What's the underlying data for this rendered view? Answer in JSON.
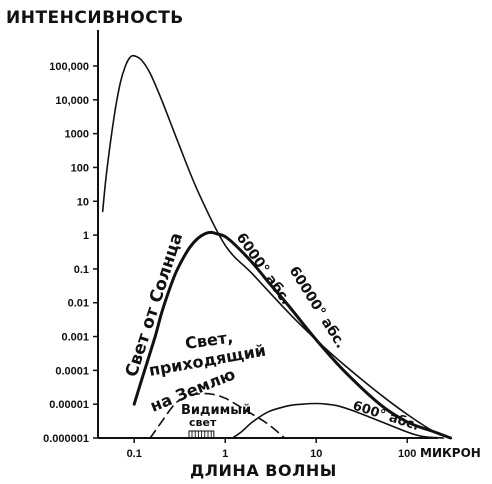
{
  "chart_data": {
    "type": "line",
    "title": "",
    "ylabel": "ИНТЕНСИВНОСТЬ",
    "xlabel": "ДЛИНА ВОЛНЫ",
    "xunit": "МИКРОН",
    "x_scale": "log",
    "y_scale": "log",
    "xlim": [
      0.04,
      400
    ],
    "ylim": [
      1e-06,
      1000000
    ],
    "x_ticks": [
      {
        "value": 0.1,
        "label": "0.1"
      },
      {
        "value": 1,
        "label": "1"
      },
      {
        "value": 10,
        "label": "10"
      },
      {
        "value": 100,
        "label": "100"
      }
    ],
    "y_ticks": [
      {
        "value": 100000,
        "label": "100,000"
      },
      {
        "value": 10000,
        "label": "10,000"
      },
      {
        "value": 1000,
        "label": "1000"
      },
      {
        "value": 100,
        "label": "100"
      },
      {
        "value": 10,
        "label": "10"
      },
      {
        "value": 1,
        "label": "1"
      },
      {
        "value": 0.1,
        "label": "0.1"
      },
      {
        "value": 0.01,
        "label": "0.01"
      },
      {
        "value": 0.001,
        "label": "0.001"
      },
      {
        "value": 0.0001,
        "label": "0.0001"
      },
      {
        "value": 1e-05,
        "label": "0.00001"
      },
      {
        "value": 1e-06,
        "label": "0.000001"
      }
    ],
    "grid": false,
    "legend": "none",
    "series": [
      {
        "name": "60000° абс.",
        "style": "solid",
        "weight": "thin",
        "x": [
          0.045,
          0.05,
          0.06,
          0.07,
          0.08,
          0.09,
          0.1,
          0.12,
          0.15,
          0.2,
          0.3,
          0.5,
          1,
          2,
          5,
          10,
          20,
          50,
          100,
          200,
          300
        ],
        "y": [
          5,
          80,
          3000,
          30000,
          100000,
          180000,
          200000,
          150000,
          60000,
          10000,
          600,
          20,
          0.5,
          0.07,
          0.005,
          0.0008,
          0.00015,
          2e-05,
          5e-06,
          1.5e-06,
          1e-06
        ]
      },
      {
        "name": "6000° абс.",
        "style": "solid",
        "weight": "thick",
        "x": [
          0.1,
          0.13,
          0.17,
          0.2,
          0.25,
          0.3,
          0.4,
          0.5,
          0.6,
          0.7,
          0.8,
          1,
          1.3,
          2,
          3,
          5,
          10,
          20,
          50,
          100,
          200,
          300
        ],
        "y": [
          1e-05,
          0.0001,
          0.001,
          0.005,
          0.03,
          0.1,
          0.4,
          0.8,
          1.1,
          1.2,
          1.1,
          0.9,
          0.5,
          0.15,
          0.04,
          0.008,
          0.0008,
          0.0001,
          1e-05,
          3e-06,
          1.5e-06,
          1e-06
        ]
      },
      {
        "name": "600° абс.",
        "style": "solid",
        "weight": "thin",
        "x": [
          1.2,
          1.5,
          2,
          3,
          5,
          7,
          10,
          13,
          17,
          25,
          40,
          60,
          100,
          150,
          250
        ],
        "y": [
          1e-06,
          1.5e-06,
          3e-06,
          6e-06,
          9e-06,
          1e-05,
          1.05e-05,
          1e-05,
          9e-06,
          6.5e-06,
          4e-06,
          2.6e-06,
          1.5e-06,
          1.1e-06,
          1e-06
        ]
      },
      {
        "name": "Свет, приходящий на Землю",
        "style": "dashed",
        "weight": "thin",
        "x": [
          0.15,
          0.2,
          0.25,
          0.3,
          0.4,
          0.5,
          0.7,
          1,
          1.5,
          2,
          3,
          4.5
        ],
        "y": [
          1e-06,
          3e-06,
          7e-06,
          1.2e-05,
          1.8e-05,
          2e-05,
          2e-05,
          1.5e-05,
          8e-06,
          5e-06,
          2.5e-06,
          1e-06
        ]
      }
    ],
    "visible_band": {
      "label": "Видимый свет",
      "x_range": [
        0.4,
        0.75
      ]
    },
    "annotations": [
      {
        "text": "Свет от Солнца"
      },
      {
        "text": "6000° абс."
      },
      {
        "text": "60000° абс."
      },
      {
        "text": "600° абс."
      },
      {
        "text": "Свет,"
      },
      {
        "text": "приходящий"
      },
      {
        "text": "на Землю"
      },
      {
        "text": "Видимый"
      },
      {
        "text": "свет"
      }
    ]
  }
}
